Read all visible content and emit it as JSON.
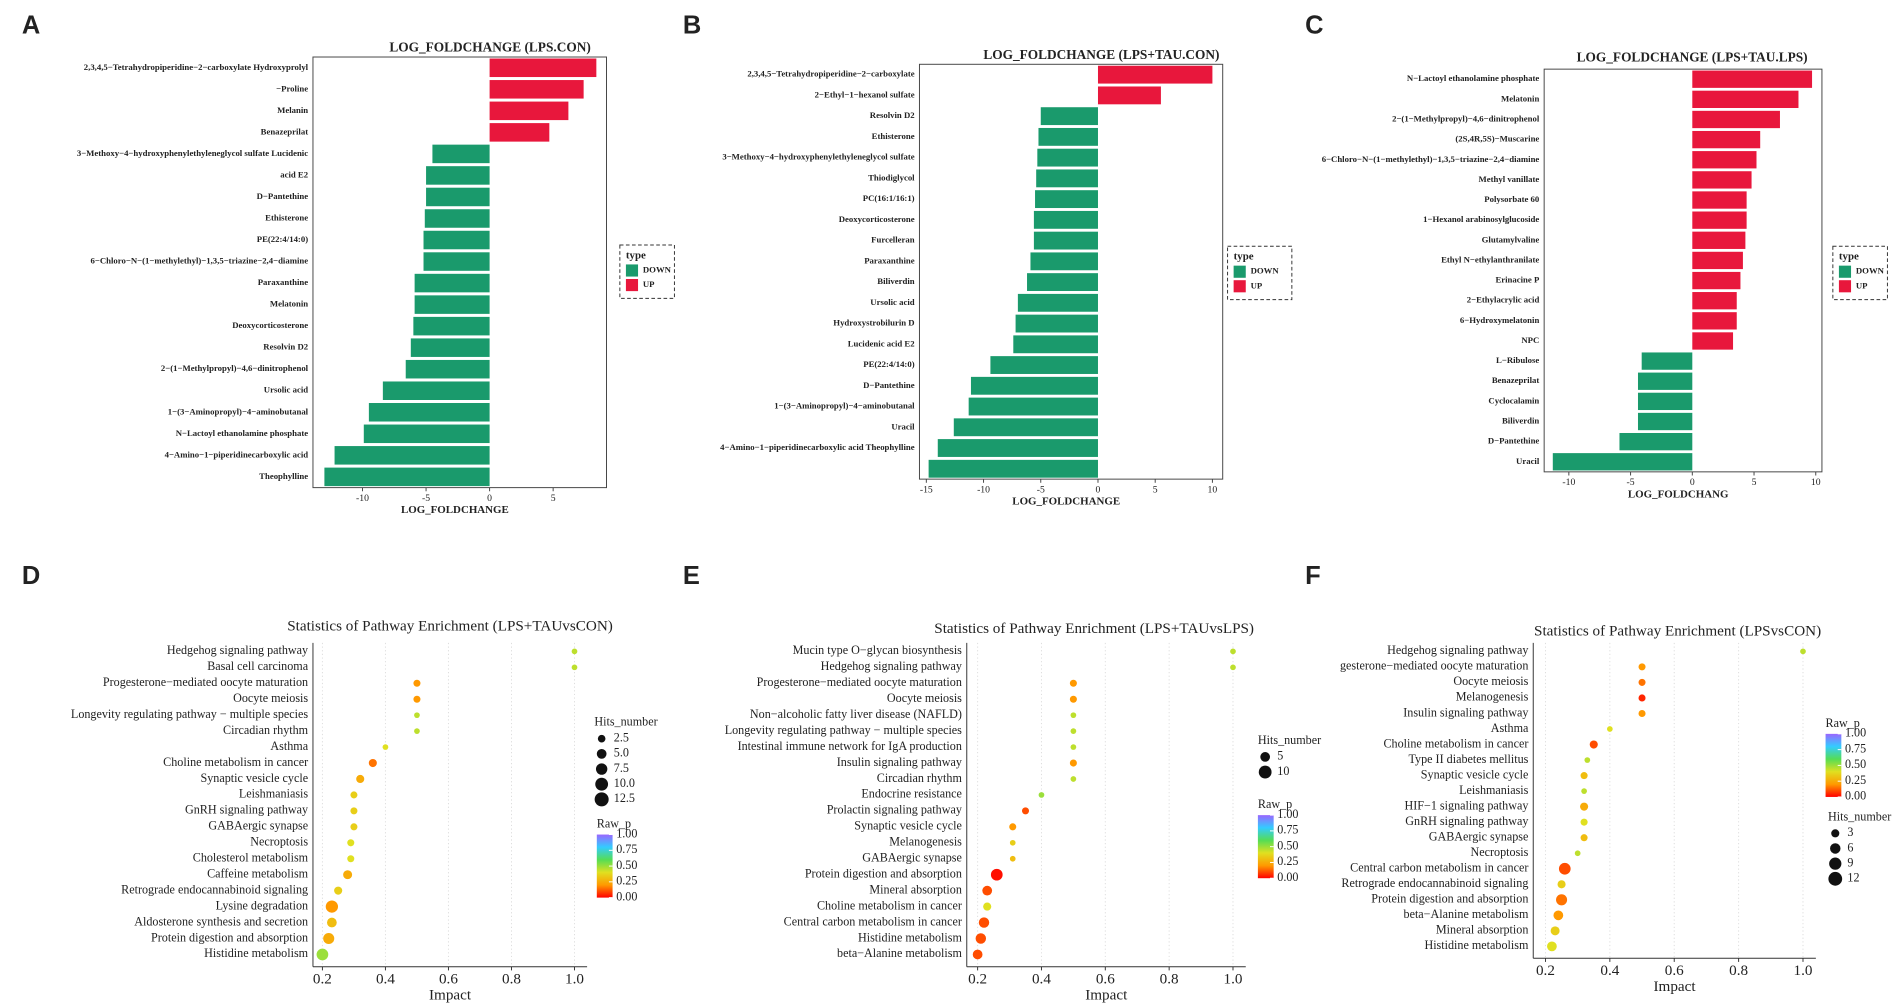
{
  "chart_data": [
    {
      "panel": "A",
      "type": "bar",
      "title": "LOG_FOLDCHANGE (LPS.CON)",
      "xlabel": "LOG_FOLDCHANGE",
      "legend_title": "type",
      "categories": [
        "2,3,4,5−Tetrahydropiperidine−2−carboxylate Hydroxyprolyl",
        "−Proline",
        "Melanin",
        "Benazeprilat",
        "3−Methoxy−4−hydroxyphenylethyleneglycol sulfate Lucidenic",
        "acid E2",
        "D−Pantethine",
        "Ethisterone",
        "PE(22:4/14:0)",
        "6−Chloro−N−(1−methylethyl)−1,3,5−triazine−2,4−diamine",
        "Paraxanthine",
        "Melatonin",
        "Deoxycorticosterone",
        "Resolvin D2",
        "2−(1−Methylpropyl)−4,6−dinitrophenol",
        "Ursolic acid",
        "1−(3−Aminopropyl)−4−aminobutanal",
        "N−Lactoyl ethanolamine phosphate",
        "4−Amino−1−piperidinecarboxylic acid",
        "Theophylline"
      ],
      "series": [
        {
          "name": "DOWN",
          "color": "#1a9a6c",
          "values": [
            null,
            null,
            null,
            null,
            -4.5,
            -5.0,
            -5.0,
            -5.1,
            -5.2,
            -5.2,
            -5.9,
            -5.9,
            -6.0,
            -6.2,
            -6.6,
            -8.4,
            -9.5,
            -9.9,
            -12.2,
            -13.0
          ]
        },
        {
          "name": "UP",
          "color": "#e8173c",
          "values": [
            8.4,
            7.4,
            6.2,
            4.7,
            null,
            null,
            null,
            null,
            null,
            null,
            null,
            null,
            null,
            null,
            null,
            null,
            null,
            null,
            null,
            null
          ]
        }
      ],
      "xlim": [
        -13.9,
        9.2
      ],
      "xticks": [
        -10,
        -5,
        0,
        5
      ]
    },
    {
      "panel": "B",
      "type": "bar",
      "title": "LOG_FOLDCHANGE (LPS+TAU.CON)",
      "xlabel": "LOG_FOLDCHANGE",
      "legend_title": "type",
      "categories": [
        "2,3,4,5−Tetrahydropiperidine−2−carboxylate",
        "2−Ethyl−1−hexanol sulfate",
        "Resolvin D2",
        "Ethisterone",
        "3−Methoxy−4−hydroxyphenylethyleneglycol sulfate",
        "Thiodiglycol",
        "PC(16:1/16:1)",
        "Deoxycorticosterone",
        "Furcelleran",
        "Paraxanthine",
        "Biliverdin",
        "Ursolic acid",
        "Hydroxystrobilurin D",
        "Lucidenic acid E2",
        "PE(22:4/14:0)",
        "D−Pantethine",
        "1−(3−Aminopropyl)−4−aminobutanal",
        "Uracil",
        "4−Amino−1−piperidinecarboxylic acid Theophylline",
        null
      ],
      "series": [
        {
          "name": "DOWN",
          "color": "#1a9a6c",
          "values": [
            null,
            null,
            -5.0,
            -5.2,
            -5.3,
            -5.4,
            -5.5,
            -5.6,
            -5.6,
            -5.9,
            -6.2,
            -7.0,
            -7.2,
            -7.4,
            -9.4,
            -11.1,
            -11.3,
            -12.6,
            -14.0,
            -14.8
          ]
        },
        {
          "name": "UP",
          "color": "#e8173c",
          "values": [
            10.0,
            5.5,
            null,
            null,
            null,
            null,
            null,
            null,
            null,
            null,
            null,
            null,
            null,
            null,
            null,
            null,
            null,
            null,
            null,
            null
          ]
        }
      ],
      "xlim": [
        -15.6,
        10.9
      ],
      "xticks": [
        -15,
        -10,
        -5,
        0,
        5,
        10
      ]
    },
    {
      "panel": "C",
      "type": "bar",
      "title": "LOG_FOLDCHANGE (LPS+TAU.LPS)",
      "xlabel": "LOG_FOLDCHANG",
      "legend_title": "type",
      "categories": [
        "N−Lactoyl ethanolamine phosphate",
        "Melatonin",
        "2−(1−Methylpropyl)−4,6−dinitrophenol",
        "(2S,4R,5S)−Muscarine",
        "6−Chloro−N−(1−methylethyl)−1,3,5−triazine−2,4−diamine",
        "Methyl vanillate",
        "Polysorbate 60",
        "1−Hexanol arabinosylglucoside",
        "Glutamylvaline",
        "Ethyl N−ethylanthranilate",
        "Erinacine P",
        "2−Ethylacrylic acid",
        "6−Hydroxymelatonin",
        "NPC",
        "L−Ribulose",
        "Benazeprilat",
        "Cyclocalamin",
        "Biliverdin",
        "D−Pantethine",
        "Uracil"
      ],
      "series": [
        {
          "name": "DOWN",
          "color": "#1a9a6c",
          "values": [
            null,
            null,
            null,
            null,
            null,
            null,
            null,
            null,
            null,
            null,
            null,
            null,
            null,
            null,
            -4.1,
            -4.4,
            -4.4,
            -4.4,
            -5.9,
            -11.3
          ]
        },
        {
          "name": "UP",
          "color": "#e8173c",
          "values": [
            9.7,
            8.6,
            7.1,
            5.5,
            5.2,
            4.8,
            4.4,
            4.4,
            4.3,
            4.1,
            3.9,
            3.6,
            3.6,
            3.3,
            null,
            null,
            null,
            null,
            null,
            null
          ]
        }
      ],
      "xlim": [
        -12.0,
        10.5
      ],
      "xticks": [
        -10,
        -5,
        0,
        5,
        10
      ]
    },
    {
      "panel": "D",
      "type": "scatter",
      "title": "Statistics of Pathway Enrichment (LPS+TAUvsCON)",
      "xlabel": "Impact",
      "categories": [
        "Hedgehog signaling pathway",
        "Basal cell carcinoma",
        "Progesterone−mediated oocyte maturation",
        "Oocyte meiosis",
        "Longevity regulating pathway − multiple species",
        "Circadian rhythm",
        "Asthma",
        "Choline metabolism in cancer",
        "Synaptic vesicle cycle",
        "Leishmaniasis",
        "GnRH signaling pathway",
        "GABAergic synapse",
        "Necroptosis",
        "Cholesterol metabolism",
        "Caffeine metabolism",
        "Retrograde endocannabinoid signaling",
        "Lysine degradation",
        "Aldosterone synthesis and secretion",
        "Protein digestion and absorption",
        "Histidine metabolism"
      ],
      "impact": [
        1.0,
        1.0,
        0.5,
        0.5,
        0.5,
        0.5,
        0.4,
        0.36,
        0.32,
        0.3,
        0.3,
        0.3,
        0.29,
        0.29,
        0.28,
        0.25,
        0.23,
        0.23,
        0.22,
        0.2
      ],
      "hits": [
        1,
        1,
        2,
        2,
        1,
        1,
        1,
        3,
        3,
        2,
        2,
        2,
        2,
        2,
        4,
        3,
        9,
        5,
        7,
        8
      ],
      "raw_p": [
        0.45,
        0.45,
        0.2,
        0.2,
        0.45,
        0.45,
        0.4,
        0.15,
        0.25,
        0.35,
        0.35,
        0.35,
        0.4,
        0.4,
        0.25,
        0.35,
        0.2,
        0.3,
        0.25,
        0.5
      ],
      "xlim": [
        0.17,
        1.04
      ],
      "xticks": [
        0.2,
        0.4,
        0.6,
        0.8,
        {
          "value": 1.0,
          "label": "1.0"
        }
      ],
      "grid": true,
      "size_legend_title": "Hits_number",
      "size_ticks": [
        2.5,
        {
          "value": 5.0,
          "label": "5.0"
        },
        7.5,
        {
          "value": 10.0,
          "label": "10.0"
        },
        12.5
      ],
      "color_legend_title": "Raw_p",
      "clim": [
        0,
        1
      ],
      "color_ticks": [
        {
          "value": 1.0,
          "label": "1.00"
        },
        0.75,
        {
          "value": 0.5,
          "label": "0.50"
        },
        0.25,
        {
          "value": 0.0,
          "label": "0.00"
        }
      ],
      "colormap": [
        "#ff0000",
        "#ff9900",
        "#e0e020",
        "#55dd55",
        "#33ccff",
        "#9966ff"
      ]
    },
    {
      "panel": "E",
      "type": "scatter",
      "title": "Statistics of Pathway Enrichment (LPS+TAUvsLPS)",
      "xlabel": "Impact",
      "categories": [
        "Mucin type O−glycan biosynthesis",
        "Hedgehog signaling pathway",
        "Progesterone−mediated oocyte maturation",
        "Oocyte meiosis",
        "Non−alcoholic fatty liver disease (NAFLD)",
        "Longevity regulating pathway − multiple species",
        "Intestinal immune network for IgA production",
        "Insulin signaling pathway",
        "Circadian rhythm",
        "Endocrine resistance",
        "Prolactin signaling pathway",
        "Synaptic vesicle cycle",
        "Melanogenesis",
        "GABAergic synapse",
        "Protein digestion and absorption",
        "Mineral absorption",
        "Choline metabolism in cancer",
        "Central carbon metabolism in cancer",
        "Histidine metabolism",
        "beta−Alanine metabolism"
      ],
      "impact": [
        1.0,
        1.0,
        0.5,
        0.5,
        0.5,
        0.5,
        0.5,
        0.5,
        0.5,
        0.4,
        0.35,
        0.31,
        0.31,
        0.31,
        0.26,
        0.23,
        0.23,
        0.22,
        0.21,
        0.2
      ],
      "hits": [
        1,
        1,
        2,
        2,
        1,
        1,
        1,
        2,
        1,
        1,
        2,
        2,
        1,
        1,
        8,
        5,
        3,
        6,
        6,
        5
      ],
      "raw_p": [
        0.45,
        0.45,
        0.2,
        0.2,
        0.45,
        0.45,
        0.45,
        0.2,
        0.45,
        0.5,
        0.1,
        0.2,
        0.35,
        0.3,
        0.02,
        0.1,
        0.4,
        0.1,
        0.1,
        0.1
      ],
      "xlim": [
        0.166,
        1.04
      ],
      "xticks": [
        0.2,
        0.4,
        0.6,
        0.8,
        {
          "value": 1.0,
          "label": "1.0"
        }
      ],
      "grid": true,
      "size_legend_title": "Hits_number",
      "size_ticks": [
        5,
        10
      ],
      "color_legend_title": "Raw_p",
      "clim": [
        0,
        1
      ],
      "color_ticks": [
        {
          "value": 1.0,
          "label": "1.00"
        },
        0.75,
        {
          "value": 0.5,
          "label": "0.50"
        },
        0.25,
        {
          "value": 0.0,
          "label": "0.00"
        }
      ],
      "colormap": [
        "#ff0000",
        "#ff9900",
        "#e0e020",
        "#55dd55",
        "#33ccff",
        "#9966ff"
      ]
    },
    {
      "panel": "F",
      "type": "scatter",
      "title": "Statistics of Pathway Enrichment (LPSvsCON)",
      "xlabel": "Impact",
      "categories": [
        "Hedgehog signaling pathway",
        "gesterone−mediated oocyte maturation",
        "Oocyte meiosis",
        "Melanogenesis",
        "Insulin signaling pathway",
        "Asthma",
        "Choline metabolism in cancer",
        "Type II diabetes mellitus",
        "Synaptic vesicle cycle",
        "Leishmaniasis",
        "HIF−1 signaling pathway",
        "GnRH signaling pathway",
        "GABAergic synapse",
        "Necroptosis",
        "Central carbon metabolism in cancer",
        "Retrograde endocannabinoid signaling",
        "Protein digestion and absorption",
        "beta−Alanine metabolism",
        "Mineral absorption",
        "Histidine metabolism"
      ],
      "impact": [
        1.0,
        0.5,
        0.5,
        0.5,
        0.5,
        0.4,
        0.35,
        0.33,
        0.32,
        0.32,
        0.32,
        0.32,
        0.32,
        0.3,
        0.26,
        0.25,
        0.25,
        0.24,
        0.23,
        0.22
      ],
      "hits": [
        1,
        2,
        2,
        2,
        2,
        1,
        3,
        1,
        2,
        1,
        3,
        2,
        2,
        1,
        8,
        3,
        7,
        5,
        4,
        5
      ],
      "raw_p": [
        0.45,
        0.2,
        0.15,
        0.05,
        0.2,
        0.4,
        0.1,
        0.45,
        0.3,
        0.45,
        0.25,
        0.4,
        0.3,
        0.45,
        0.1,
        0.35,
        0.15,
        0.2,
        0.35,
        0.4
      ],
      "xlim": [
        0.162,
        1.04
      ],
      "xticks": [
        0.2,
        0.4,
        0.6,
        0.8,
        {
          "value": 1.0,
          "label": "1.0"
        }
      ],
      "grid": true,
      "size_legend_title": "Hits_number",
      "size_ticks": [
        3,
        6,
        9,
        12
      ],
      "color_legend_title": "Raw_p",
      "clim": [
        0,
        1
      ],
      "color_ticks": [
        {
          "value": 1.0,
          "label": "1.00"
        },
        0.75,
        {
          "value": 0.5,
          "label": "0.50"
        },
        0.25,
        {
          "value": 0.0,
          "label": "0.00"
        }
      ],
      "colormap": [
        "#ff0000",
        "#ff9900",
        "#e0e020",
        "#55dd55",
        "#33ccff",
        "#9966ff"
      ]
    }
  ]
}
